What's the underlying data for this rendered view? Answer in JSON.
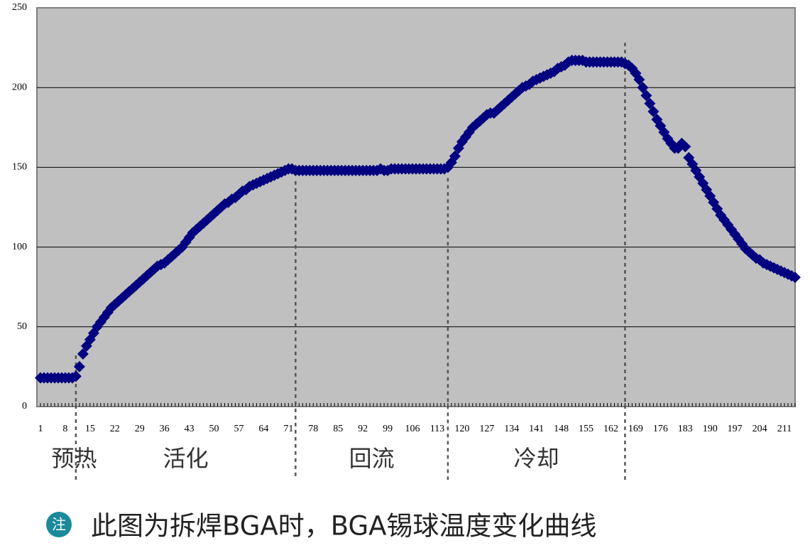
{
  "chart_data": {
    "type": "scatter",
    "x": [
      1,
      2,
      3,
      4,
      5,
      6,
      7,
      8,
      9,
      10,
      11,
      12,
      13,
      14,
      15,
      16,
      17,
      18,
      19,
      20,
      21,
      22,
      23,
      24,
      25,
      26,
      27,
      28,
      29,
      30,
      31,
      32,
      33,
      34,
      35,
      36,
      37,
      38,
      39,
      40,
      41,
      42,
      43,
      44,
      45,
      46,
      47,
      48,
      49,
      50,
      51,
      52,
      53,
      54,
      55,
      56,
      57,
      58,
      59,
      60,
      61,
      62,
      63,
      64,
      65,
      66,
      67,
      68,
      69,
      70,
      71,
      72,
      73,
      74,
      75,
      76,
      77,
      78,
      79,
      80,
      81,
      82,
      83,
      84,
      85,
      86,
      87,
      88,
      89,
      90,
      91,
      92,
      93,
      94,
      95,
      96,
      97,
      98,
      99,
      100,
      101,
      102,
      103,
      104,
      105,
      106,
      107,
      108,
      109,
      110,
      111,
      112,
      113,
      114,
      115,
      116,
      117,
      118,
      119,
      120,
      121,
      122,
      123,
      124,
      125,
      126,
      127,
      128,
      129,
      130,
      131,
      132,
      133,
      134,
      135,
      136,
      137,
      138,
      139,
      140,
      141,
      142,
      143,
      144,
      145,
      146,
      147,
      148,
      149,
      150,
      151,
      152,
      153,
      154,
      155,
      156,
      157,
      158,
      159,
      160,
      161,
      162,
      163,
      164,
      165,
      166,
      167,
      168,
      169,
      170,
      171,
      172,
      173,
      174,
      175,
      176,
      177,
      178,
      179,
      180,
      181,
      182,
      183,
      184,
      185,
      186,
      187,
      188,
      189,
      190,
      191,
      192,
      193,
      194,
      195,
      196,
      197,
      198,
      199,
      200,
      201,
      202,
      203,
      204,
      205,
      206,
      207,
      208,
      209,
      210,
      211,
      212,
      213,
      214
    ],
    "values": [
      18,
      18,
      18,
      18,
      18,
      18,
      18,
      18,
      18,
      18,
      19,
      25,
      33,
      38,
      42,
      46,
      50,
      53,
      56,
      59,
      62,
      64,
      66,
      68,
      70,
      72,
      74,
      76,
      78,
      80,
      82,
      84,
      86,
      88,
      89,
      90,
      92,
      94,
      96,
      98,
      100,
      103,
      106,
      109,
      111,
      113,
      115,
      117,
      119,
      121,
      123,
      125,
      127,
      128,
      130,
      131,
      133,
      135,
      136,
      138,
      139,
      140,
      141,
      142,
      143,
      144,
      145,
      146,
      147,
      148,
      149,
      149,
      148,
      148,
      148,
      148,
      148,
      148,
      148,
      148,
      148,
      148,
      148,
      148,
      148,
      148,
      148,
      148,
      148,
      148,
      148,
      148,
      148,
      148,
      148,
      148,
      149,
      148,
      148,
      149,
      149,
      149,
      149,
      149,
      149,
      149,
      149,
      149,
      149,
      149,
      149,
      149,
      149,
      149,
      149,
      150,
      153,
      157,
      162,
      166,
      169,
      172,
      175,
      177,
      179,
      181,
      183,
      184,
      184,
      186,
      188,
      190,
      192,
      194,
      196,
      198,
      200,
      201,
      202,
      204,
      205,
      206,
      207,
      208,
      209,
      210,
      212,
      213,
      214,
      216,
      217,
      217,
      217,
      217,
      216,
      216,
      216,
      216,
      216,
      216,
      216,
      216,
      216,
      216,
      216,
      215,
      214,
      212,
      209,
      205,
      200,
      195,
      190,
      185,
      180,
      176,
      172,
      168,
      165,
      162,
      162,
      165,
      163,
      156,
      152,
      148,
      144,
      140,
      136,
      132,
      128,
      124,
      120,
      117,
      114,
      111,
      108,
      105,
      102,
      99,
      97,
      95,
      93,
      92,
      90,
      89,
      88,
      87,
      86,
      85,
      84,
      83,
      82,
      81
    ],
    "color": "#000080",
    "xlim": [
      0,
      214
    ],
    "xticks": [
      1,
      8,
      15,
      22,
      29,
      36,
      43,
      50,
      57,
      64,
      71,
      78,
      85,
      92,
      99,
      106,
      113,
      120,
      127,
      134,
      141,
      148,
      155,
      162,
      169,
      176,
      183,
      190,
      197,
      204,
      211
    ],
    "ylim": [
      0,
      250
    ],
    "yticks": [
      0,
      50,
      100,
      150,
      200,
      250
    ],
    "grid": true,
    "dividers": [
      11,
      73,
      116,
      166
    ],
    "phases": [
      "预热",
      "活化",
      "回流",
      "冷却"
    ],
    "note": {
      "icon": "注",
      "text": "此图为拆焊BGA时，BGA锡球温度变化曲线"
    }
  }
}
